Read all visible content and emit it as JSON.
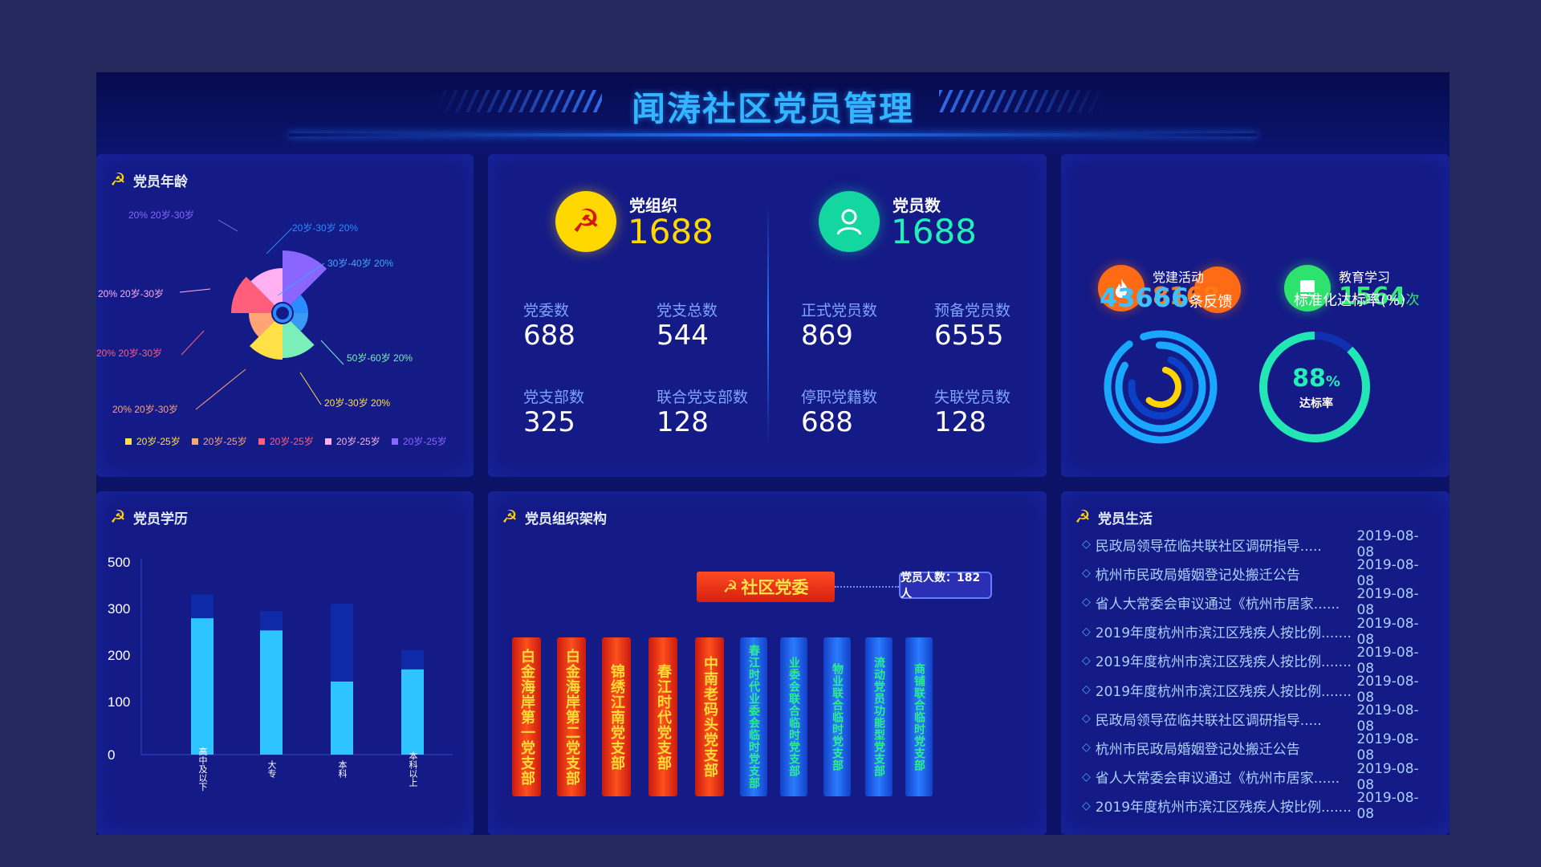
{
  "header": {
    "title": "闻涛社区党员管理"
  },
  "age_panel": {
    "title": "党员年龄",
    "slices": [
      {
        "label": "20%  20岁-30岁",
        "color": "#8a66ff"
      },
      {
        "label": "20岁-30岁  20%",
        "color": "#2a8cff"
      },
      {
        "label": "30岁-40岁  20%",
        "color": "#3da9ff"
      },
      {
        "label": "50岁-60岁  20%",
        "color": "#7af0b8"
      },
      {
        "label": "20岁-30岁  20%",
        "color": "#ffe047"
      },
      {
        "label": "20%  20岁-30岁",
        "color": "#ffa474"
      },
      {
        "label": "20%  20岁-30岁",
        "color": "#ff5f7a"
      },
      {
        "label": "20%  20岁-30岁",
        "color": "#ffb0f0"
      }
    ],
    "legend": [
      {
        "label": "20岁-25岁",
        "color": "#ffe047"
      },
      {
        "label": "20岁-25岁",
        "color": "#ffa474"
      },
      {
        "label": "20岁-25岁",
        "color": "#ff5f7a"
      },
      {
        "label": "20岁-25岁",
        "color": "#ffb0f0"
      },
      {
        "label": "20岁-25岁",
        "color": "#8a66ff"
      }
    ]
  },
  "stats": {
    "org": {
      "label": "党组织",
      "value": "1688"
    },
    "members": {
      "label": "党员数",
      "value": "1688"
    },
    "items": [
      {
        "label": "党委数",
        "value": "688"
      },
      {
        "label": "党支总数",
        "value": "544"
      },
      {
        "label": "正式党员数",
        "value": "869"
      },
      {
        "label": "预备党员数",
        "value": "6555"
      },
      {
        "label": "党支部数",
        "value": "325"
      },
      {
        "label": "联合党支部数",
        "value": "128"
      },
      {
        "label": "停职党籍数",
        "value": "688"
      },
      {
        "label": "失联党员数",
        "value": "128"
      }
    ]
  },
  "activity": {
    "party_activity": {
      "label": "党建活动",
      "value": "8168",
      "unit": "次"
    },
    "education": {
      "label": "教育学习",
      "value": "1564",
      "unit": "次"
    },
    "feedback": {
      "value": "43666",
      "unit": "条反馈"
    },
    "rate": {
      "label": "标准化达标率(%)",
      "value": "88",
      "unit": "%",
      "caption": "达标率",
      "percent": 88
    }
  },
  "edu_panel": {
    "title": "党员学历",
    "y_ticks": [
      "500",
      "300",
      "200",
      "100",
      "0"
    ],
    "categories": [
      "高中及以下",
      "大专",
      "本科",
      "本科以上"
    ]
  },
  "org_panel": {
    "title": "党员组织架构",
    "committee": "社区党委",
    "members_tag": "党员人数：182人",
    "branches": [
      {
        "name": "白金海岸第一党支部",
        "kind": "red"
      },
      {
        "name": "白金海岸第二党支部",
        "kind": "red"
      },
      {
        "name": "锦绣江南党支部",
        "kind": "red"
      },
      {
        "name": "春江时代党支部",
        "kind": "red"
      },
      {
        "name": "中南老码头党支部",
        "kind": "red"
      },
      {
        "name": "春江时代业委会临时党支部",
        "kind": "blue"
      },
      {
        "name": "业委会联合临时党支部",
        "kind": "blue"
      },
      {
        "name": "物业联合临时党支部",
        "kind": "blue"
      },
      {
        "name": "流动党员功能型党支部",
        "kind": "blue"
      },
      {
        "name": "商铺联合临时党支部",
        "kind": "blue"
      }
    ]
  },
  "life_panel": {
    "title": "党员生活",
    "items": [
      {
        "text": "民政局领导莅临共联社区调研指导.....",
        "date": "2019-08-08"
      },
      {
        "text": "杭州市民政局婚姻登记处搬迁公告",
        "date": "2019-08-08"
      },
      {
        "text": "省人大常委会审议通过《杭州市居家......",
        "date": "2019-08-08"
      },
      {
        "text": "2019年度杭州市滨江区残疾人按比例.......",
        "date": "2019-08-08"
      },
      {
        "text": "2019年度杭州市滨江区残疾人按比例.......",
        "date": "2019-08-08"
      },
      {
        "text": "2019年度杭州市滨江区残疾人按比例.......",
        "date": "2019-08-08"
      },
      {
        "text": "民政局领导莅临共联社区调研指导.....",
        "date": "2019-08-08"
      },
      {
        "text": "杭州市民政局婚姻登记处搬迁公告",
        "date": "2019-08-08"
      },
      {
        "text": "省人大常委会审议通过《杭州市居家......",
        "date": "2019-08-08"
      },
      {
        "text": "2019年度杭州市滨江区残疾人按比例.......",
        "date": "2019-08-08"
      }
    ]
  },
  "chart_data": [
    {
      "type": "pie",
      "variant": "rose",
      "labels": [
        "20岁-30岁",
        "20岁-30岁",
        "30岁-40岁",
        "50岁-60岁",
        "20岁-30岁",
        "20岁-30岁",
        "20岁-30岁",
        "20岁-30岁"
      ],
      "values": [
        20,
        20,
        20,
        20,
        20,
        20,
        20,
        20
      ],
      "legend_labels": [
        "20岁-25岁",
        "20岁-25岁",
        "20岁-25岁",
        "20岁-25岁",
        "20岁-25岁"
      ],
      "legend_position": "bottom"
    },
    {
      "type": "bar",
      "stacked": true,
      "categories": [
        "高中及以下",
        "大专",
        "本科",
        "本科以上"
      ],
      "series": [
        {
          "values": [
            280,
            255,
            150,
            175
          ],
          "color": "#2ec4ff"
        },
        {
          "values": [
            80,
            40,
            170,
            40
          ],
          "color": "#0f2aa8"
        }
      ],
      "y_ticks": [
        "0",
        "100",
        "200",
        "300",
        "500"
      ],
      "ylim": [
        0,
        500
      ]
    }
  ]
}
